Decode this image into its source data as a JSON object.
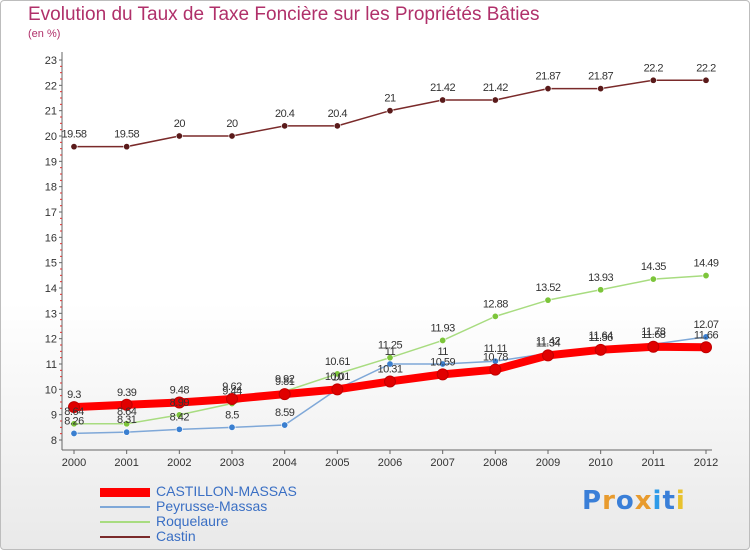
{
  "title": "Evolution du Taux de Taxe Foncière sur les Propriétés Bâties",
  "subtitle": "(en %)",
  "logo": {
    "text": "Proxiti",
    "letter_colors": [
      "#3a7fd8",
      "#e89b2e",
      "#3a7fd8",
      "#e89b2e",
      "#2e9be8",
      "#3a7fd8",
      "#e8c22e"
    ]
  },
  "chart_data": {
    "type": "line",
    "title": "Evolution du Taux de Taxe Foncière sur les Propriétés Bâties",
    "ylabel": "(en %)",
    "xlabel": "",
    "x": [
      "2000",
      "2001",
      "2002",
      "2003",
      "2004",
      "2005",
      "2006",
      "2007",
      "2008",
      "2009",
      "2010",
      "2011",
      "2012"
    ],
    "ylim": [
      8,
      23
    ],
    "yticks": [
      "8",
      "9",
      "10",
      "11",
      "12",
      "13",
      "14",
      "15",
      "16",
      "17",
      "18",
      "19",
      "20",
      "21",
      "22",
      "23"
    ],
    "grid": false,
    "legend": "bottom-left",
    "series": [
      {
        "name": "Castin",
        "color": "#7a2a2a",
        "marker": "#5a1a1a",
        "width": 1.5,
        "values": [
          19.58,
          19.58,
          20,
          20,
          20.4,
          20.4,
          21,
          21.42,
          21.42,
          21.87,
          21.87,
          22.2,
          22.2
        ],
        "labels": [
          "19.58",
          "19.58",
          "20",
          "20",
          "20.4",
          "20.4",
          "21",
          "21.42",
          "21.42",
          "21.87",
          "21.87",
          "22.2",
          "22.2"
        ]
      },
      {
        "name": "Roquelaure",
        "color": "#a8dc80",
        "marker": "#7cc53a",
        "width": 1.5,
        "values": [
          8.64,
          8.64,
          8.99,
          9.44,
          9.92,
          10.61,
          11.25,
          11.93,
          12.88,
          13.52,
          13.93,
          14.35,
          14.49
        ],
        "labels": [
          "8.64",
          "8.64",
          "8.99",
          "9.44",
          "9.92",
          "10.61",
          "11.25",
          "11.93",
          "12.88",
          "13.52",
          "13.93",
          "14.35",
          "14.49"
        ]
      },
      {
        "name": "Peyrusse-Massas",
        "color": "#7fa8d8",
        "marker": "#3a7fd0",
        "width": 1.5,
        "values": [
          8.26,
          8.31,
          8.42,
          8.5,
          8.59,
          10.01,
          11,
          11,
          11.11,
          11.42,
          11.64,
          11.78,
          12.07
        ],
        "labels": [
          "8.26",
          "8.31",
          "8.42",
          "8.5",
          "8.59",
          "10.01",
          "11",
          "11",
          "11.11",
          "11.42",
          "11.64",
          "11.78",
          "12.07"
        ]
      },
      {
        "name": "CASTILLON-MASSAS",
        "color": "#ff0000",
        "marker": "#e00000",
        "width": 8,
        "values": [
          9.3,
          9.39,
          9.48,
          9.62,
          9.81,
          10,
          10.31,
          10.59,
          10.78,
          11.34,
          11.56,
          11.68,
          11.66
        ],
        "labels": [
          "9.3",
          "9.39",
          "9.48",
          "9.62",
          "9.81",
          "10",
          "10.31",
          "10.59",
          "10.78",
          "11.34",
          "11.56",
          "11.68",
          "11.66"
        ]
      }
    ]
  },
  "legend_order": [
    3,
    2,
    1,
    0
  ]
}
